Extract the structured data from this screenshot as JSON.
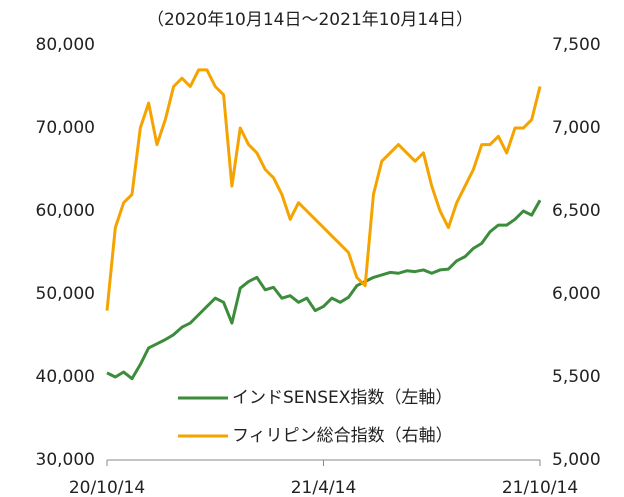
{
  "chart_data": {
    "type": "line",
    "title": "（2020年10月14日～2021年10月14日）",
    "x": [
      0,
      1,
      2,
      3,
      4,
      5,
      6,
      7,
      8,
      9,
      10,
      11,
      12,
      13,
      14,
      15,
      16,
      17,
      18,
      19,
      20,
      21,
      22,
      23,
      24,
      25,
      26,
      27,
      28,
      29,
      30,
      31,
      32,
      33,
      34,
      35,
      36,
      37,
      38,
      39,
      40,
      41,
      42,
      43,
      44,
      45,
      46,
      47,
      48,
      49,
      50,
      51,
      52
    ],
    "xlim": [
      0,
      52
    ],
    "xticks": [
      {
        "value": 0,
        "label": "20/10/14"
      },
      {
        "value": 26,
        "label": "21/4/14"
      },
      {
        "value": 52,
        "label": "21/10/14"
      }
    ],
    "ylim": [
      30000,
      80000
    ],
    "yticks": [
      {
        "value": 30000,
        "label": "30,000"
      },
      {
        "value": 40000,
        "label": "40,000"
      },
      {
        "value": 50000,
        "label": "50,000"
      },
      {
        "value": 60000,
        "label": "60,000"
      },
      {
        "value": 70000,
        "label": "70,000"
      },
      {
        "value": 80000,
        "label": "80,000"
      }
    ],
    "y2lim": [
      5000,
      7500
    ],
    "y2ticks": [
      {
        "value": 5000,
        "label": "5,000"
      },
      {
        "value": 5500,
        "label": "5,500"
      },
      {
        "value": 6000,
        "label": "6,000"
      },
      {
        "value": 6500,
        "label": "6,500"
      },
      {
        "value": 7000,
        "label": "7,000"
      },
      {
        "value": 7500,
        "label": "7,500"
      }
    ],
    "legend": "bottom-center",
    "series": [
      {
        "name": "インドSENSEX指数（左軸）",
        "color": "#3b8c3b",
        "axis": "y",
        "values": [
          40500,
          40000,
          40600,
          39800,
          41500,
          43500,
          44000,
          44500,
          45100,
          46000,
          46500,
          47500,
          48500,
          49500,
          49000,
          46500,
          50700,
          51500,
          52000,
          50500,
          50800,
          49500,
          49800,
          49000,
          49500,
          48000,
          48500,
          49500,
          49000,
          49600,
          51000,
          51500,
          52000,
          52300,
          52600,
          52500,
          52800,
          52700,
          52900,
          52500,
          52900,
          53000,
          54000,
          54500,
          55500,
          56100,
          57500,
          58300,
          58300,
          59000,
          60000,
          59500,
          61300
        ]
      },
      {
        "name": "フィリピン総合指数（右軸）",
        "color": "#f5a300",
        "axis": "y2",
        "values": [
          5900,
          6400,
          6550,
          6600,
          7000,
          7150,
          6900,
          7050,
          7250,
          7300,
          7250,
          7350,
          7350,
          7250,
          7200,
          6650,
          7000,
          6900,
          6850,
          6750,
          6700,
          6600,
          6450,
          6550,
          6500,
          6450,
          6400,
          6350,
          6300,
          6250,
          6100,
          6050,
          6600,
          6800,
          6850,
          6900,
          6850,
          6800,
          6850,
          6650,
          6500,
          6400,
          6550,
          6650,
          6750,
          6900,
          6900,
          6950,
          6850,
          7000,
          7000,
          7050,
          7250
        ]
      }
    ]
  }
}
